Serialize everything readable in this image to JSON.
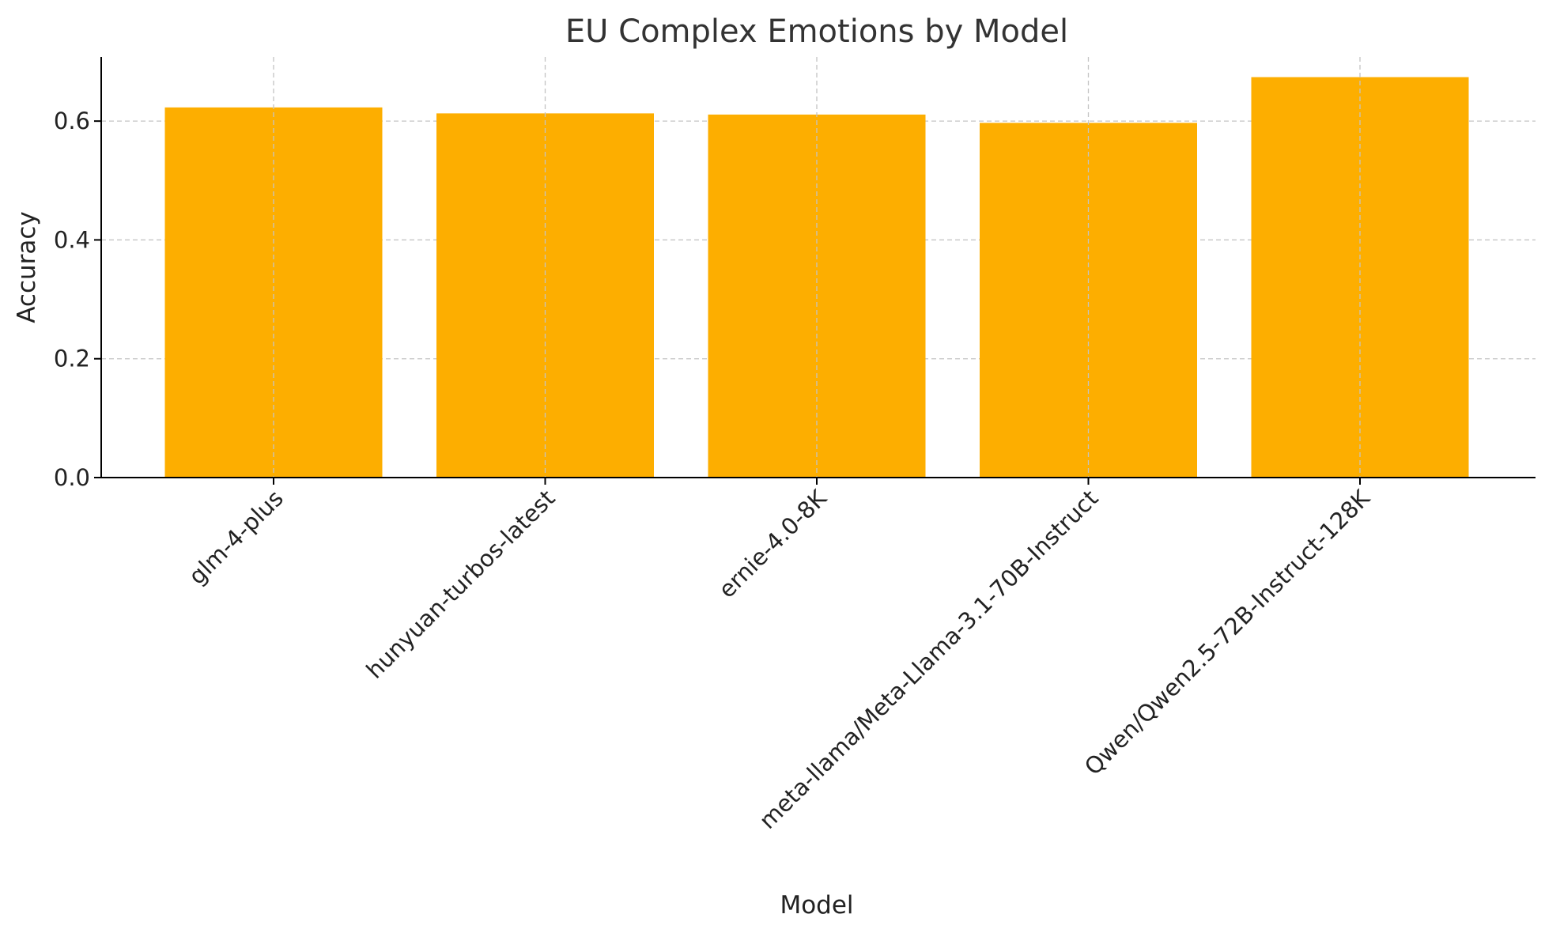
{
  "chart_data": {
    "type": "bar",
    "title": "EU Complex Emotions by Model",
    "xlabel": "Model",
    "ylabel": "Accuracy",
    "categories": [
      "glm-4-plus",
      "hunyuan-turbos-latest",
      "ernie-4.0-8K",
      "meta-llama/Meta-Llama-3.1-70B-Instruct",
      "Qwen/Qwen2.5-72B-Instruct-128K"
    ],
    "values": [
      0.623,
      0.613,
      0.611,
      0.597,
      0.674
    ],
    "ylim": [
      0,
      0.708
    ],
    "yticks": [
      0.0,
      0.2,
      0.4,
      0.6
    ],
    "ytick_labels": [
      "0.0",
      "0.2",
      "0.4",
      "0.6"
    ],
    "bar_color": "#FDAE00",
    "grid": true,
    "grid_style": "dashed"
  }
}
